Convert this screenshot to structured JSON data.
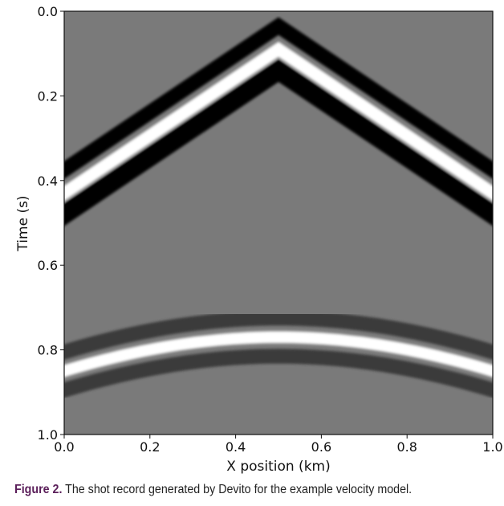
{
  "caption": {
    "label": "Figure 2.",
    "text": "The shot record generated by Devito for the example velocity model."
  },
  "chart_data": {
    "type": "heatmap",
    "colormap": "gray",
    "background_value": "#7a7a7a",
    "xlabel": "X position (km)",
    "ylabel": "Time (s)",
    "xlim": [
      0.0,
      1.0
    ],
    "ylim": [
      1.0,
      0.0
    ],
    "y_inverted": true,
    "xticks": [
      0.0,
      0.2,
      0.4,
      0.6,
      0.8,
      1.0
    ],
    "xtick_labels": [
      "0.0",
      "0.2",
      "0.4",
      "0.6",
      "0.8",
      "1.0"
    ],
    "yticks": [
      0.0,
      0.2,
      0.4,
      0.6,
      0.8,
      1.0
    ],
    "ytick_labels": [
      "0.0",
      "0.2",
      "0.4",
      "0.6",
      "0.8",
      "1.0"
    ],
    "events": [
      {
        "name": "direct-wave",
        "shape": "linear-v",
        "apex": [
          0.5,
          0.09
        ],
        "edges": [
          [
            0.0,
            0.43
          ],
          [
            1.0,
            0.43
          ]
        ],
        "bands": [
          {
            "offset": -0.055,
            "width": 0.035,
            "color": "black"
          },
          {
            "offset": 0.0,
            "width": 0.03,
            "color": "white"
          },
          {
            "offset": 0.05,
            "width": 0.045,
            "color": "black"
          }
        ]
      },
      {
        "name": "reflection",
        "shape": "hyperbola",
        "apex": [
          0.5,
          0.77
        ],
        "edges": [
          [
            0.0,
            0.85
          ],
          [
            1.0,
            0.85
          ]
        ],
        "bands": [
          {
            "offset": -0.045,
            "width": 0.035,
            "color": "dark"
          },
          {
            "offset": 0.0,
            "width": 0.028,
            "color": "white"
          },
          {
            "offset": 0.045,
            "width": 0.035,
            "color": "dark"
          }
        ]
      }
    ]
  }
}
